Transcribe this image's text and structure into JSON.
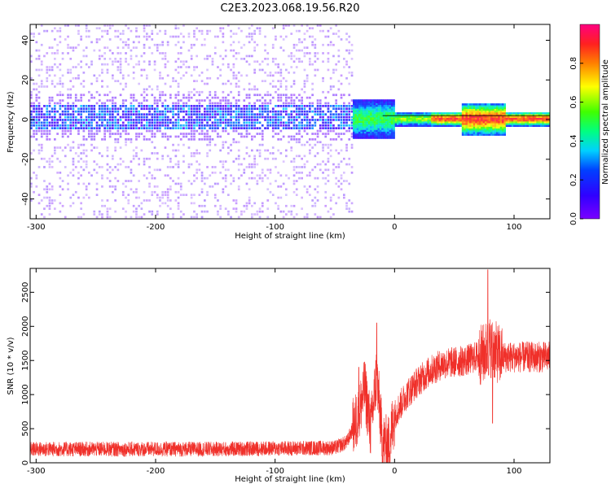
{
  "title": "C2E3.2023.068.19.56.R20",
  "colors": {
    "snr_line": "#f0302a",
    "spectrogram_low": "#7a00ff",
    "spectrogram_high": "#ff2020",
    "ridge": "#000000"
  },
  "chart_data": [
    {
      "type": "heatmap",
      "xlabel": "Height of straight line (km)",
      "ylabel": "Frequency (Hz)",
      "xlim": [
        -305,
        130
      ],
      "ylim": [
        -50,
        48
      ],
      "xticks": [
        -300,
        -200,
        -100,
        0,
        100
      ],
      "yticks": [
        -40,
        -20,
        0,
        20,
        40
      ],
      "colormap": "hsv-rainbow (purple → red)",
      "colorbar": {
        "label": "Normalized spectral amplitude",
        "range": [
          0.0,
          1.0
        ],
        "ticks": [
          "0.0",
          "0.2",
          "0.4",
          "0.6",
          "0.8"
        ]
      },
      "description_values": {
        "noise_region_km": [
          -305,
          -35
        ],
        "signal_ridge_freq_hz": 0,
        "ridge_start_km": -35
      }
    },
    {
      "type": "line",
      "xlabel": "Height of straight line (km)",
      "ylabel": "SNR (10 * v/v)",
      "xlim": [
        -305,
        130
      ],
      "ylim": [
        0,
        2850
      ],
      "xticks": [
        -300,
        -200,
        -100,
        0,
        100
      ],
      "yticks": [
        0,
        500,
        1000,
        1500,
        2000,
        2500
      ],
      "series_envelope": {
        "x": [
          -305,
          -250,
          -200,
          -150,
          -100,
          -50,
          -40,
          -30,
          -25,
          -20,
          -15,
          -10,
          -5,
          0,
          10,
          20,
          30,
          40,
          60,
          75,
          80,
          90,
          100,
          110,
          130
        ],
        "y": [
          200,
          200,
          200,
          200,
          210,
          220,
          300,
          700,
          1100,
          500,
          1300,
          300,
          250,
          700,
          1000,
          1200,
          1350,
          1450,
          1500,
          1600,
          1700,
          1550,
          1550,
          1550,
          1550
        ]
      },
      "spikes": [
        {
          "x": -30,
          "y": 1400
        },
        {
          "x": -15,
          "y": 2050
        },
        {
          "x": 78,
          "y": 2830
        },
        {
          "x": 82,
          "y": 580
        }
      ]
    }
  ]
}
